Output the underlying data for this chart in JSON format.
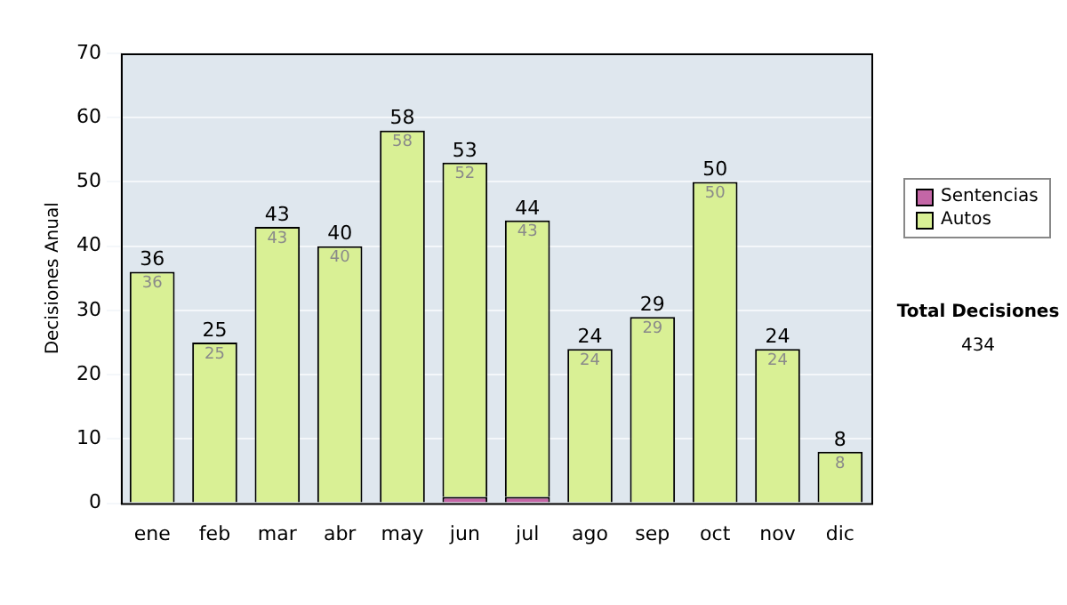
{
  "chart_data": {
    "type": "bar",
    "ylabel": "Decisiones Anual",
    "categories": [
      "ene",
      "feb",
      "mar",
      "abr",
      "may",
      "jun",
      "jul",
      "ago",
      "sep",
      "oct",
      "nov",
      "dic"
    ],
    "series": [
      {
        "name": "Sentencias",
        "color": "#c466a6",
        "values": [
          0,
          0,
          0,
          0,
          0,
          1,
          1,
          0,
          0,
          0,
          0,
          0
        ]
      },
      {
        "name": "Autos",
        "color": "#d9f095",
        "values": [
          36,
          25,
          43,
          40,
          58,
          52,
          43,
          24,
          29,
          50,
          24,
          8
        ],
        "value_labels": [
          "36",
          "25",
          "43",
          "40",
          "58",
          "52",
          "43",
          "24",
          "29",
          "50",
          "24",
          "8"
        ]
      }
    ],
    "stacked": true,
    "ylim": [
      0,
      70
    ],
    "yticks": [
      0,
      10,
      20,
      30,
      40,
      50,
      60,
      70
    ],
    "grid": "y",
    "legend": "right",
    "totals": [
      "36",
      "25",
      "43",
      "40",
      "58",
      "53",
      "44",
      "24",
      "29",
      "50",
      "24",
      "8"
    ],
    "annotations": [
      "Total Decisiones",
      "434"
    ]
  }
}
